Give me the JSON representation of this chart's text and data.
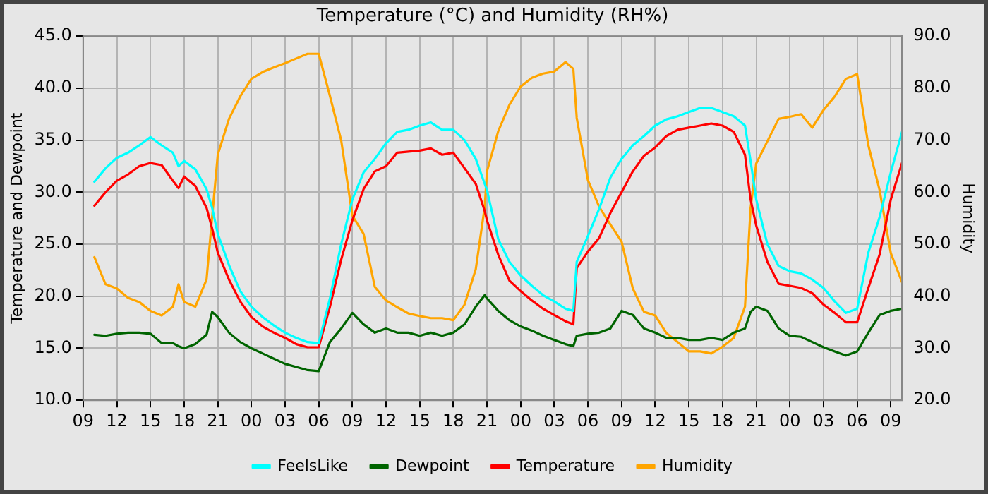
{
  "chart_data": {
    "type": "line",
    "title": "Temperature (°C) and Humidity (RH%)",
    "ylabel": "Temperature and Dewpoint",
    "y2label": "Humidity",
    "x": [
      10,
      11,
      12,
      13,
      14,
      15,
      16,
      17,
      17.5,
      18,
      19,
      20,
      20.5,
      21,
      22,
      23,
      24,
      25,
      26,
      27,
      28,
      29,
      30,
      31,
      32,
      33,
      34,
      35,
      36,
      37,
      38,
      39,
      40,
      41,
      42,
      43,
      44,
      44.8,
      45,
      46,
      47,
      48,
      49,
      50,
      51,
      52,
      52.7,
      53,
      54,
      55,
      56,
      57,
      58,
      59,
      60,
      61,
      62,
      63,
      64,
      65,
      66,
      67,
      68,
      68.5,
      69,
      70,
      71,
      72,
      73,
      74,
      75,
      76,
      77,
      78,
      79,
      80,
      81,
      82
    ],
    "series": [
      {
        "name": "FeelsLike",
        "color": "#00ffff",
        "values": [
          31,
          32.3,
          33.3,
          33.8,
          34.5,
          35.3,
          34.5,
          33.8,
          32.5,
          33,
          32.2,
          30.3,
          28.5,
          26,
          23,
          20.5,
          19,
          18,
          17.2,
          16.5,
          16,
          15.6,
          15.5,
          19.8,
          25,
          29.3,
          31.9,
          33.2,
          34.7,
          35.8,
          36,
          36.4,
          36.7,
          36,
          36,
          35,
          33.2,
          30.8,
          30.2,
          25.5,
          23.3,
          22,
          21,
          20.1,
          19.5,
          18.8,
          18.6,
          23.3,
          25.8,
          28.4,
          31.4,
          33.2,
          34.5,
          35.4,
          36.4,
          37,
          37.3,
          37.7,
          38.1,
          38.1,
          37.7,
          37.3,
          36.4,
          33,
          29.3,
          25,
          22.9,
          22.4,
          22.2,
          21.6,
          20.8,
          19.5,
          18.4,
          18.8,
          24.2,
          27.6,
          31.9,
          35.8
        ]
      },
      {
        "name": "Dewpoint",
        "color": "#006400",
        "values": [
          16.3,
          16.2,
          16.4,
          16.5,
          16.5,
          16.4,
          15.5,
          15.5,
          15.2,
          15,
          15.4,
          16.3,
          18.5,
          18,
          16.5,
          15.6,
          15,
          14.5,
          14,
          13.5,
          13.2,
          12.9,
          12.8,
          15.6,
          16.9,
          18.4,
          17.3,
          16.5,
          16.9,
          16.5,
          16.5,
          16.2,
          16.5,
          16.2,
          16.5,
          17.3,
          19,
          20.1,
          19.8,
          18.6,
          17.7,
          17.1,
          16.7,
          16.2,
          15.8,
          15.4,
          15.2,
          16.2,
          16.4,
          16.5,
          16.9,
          18.6,
          18.2,
          16.9,
          16.5,
          16,
          16,
          15.8,
          15.8,
          16,
          15.8,
          16.5,
          16.9,
          18.5,
          19,
          18.6,
          16.9,
          16.2,
          16.1,
          15.6,
          15.1,
          14.7,
          14.3,
          14.7,
          16.5,
          18.2,
          18.6,
          18.8
        ]
      },
      {
        "name": "Temperature",
        "color": "#ff0000",
        "values": [
          28.7,
          30,
          31.1,
          31.7,
          32.5,
          32.8,
          32.6,
          31.1,
          30.4,
          31.5,
          30.6,
          28.5,
          26.5,
          24.2,
          21.6,
          19.5,
          18,
          17.1,
          16.5,
          16,
          15.4,
          15.1,
          15.1,
          19,
          23.5,
          27.3,
          30.3,
          32,
          32.5,
          33.8,
          33.9,
          34,
          34.2,
          33.6,
          33.8,
          32.3,
          30.8,
          28.2,
          27.3,
          24,
          21.5,
          20.5,
          19.6,
          18.8,
          18.2,
          17.6,
          17.3,
          22.7,
          24.3,
          25.6,
          28,
          30,
          32,
          33.5,
          34.3,
          35.4,
          36,
          36.2,
          36.4,
          36.6,
          36.4,
          35.8,
          33.6,
          29.3,
          26.8,
          23.3,
          21.2,
          21,
          20.8,
          20.3,
          19.2,
          18.4,
          17.5,
          17.5,
          20.8,
          24,
          29.3,
          32.8
        ]
      },
      {
        "name": "Humidity",
        "color": "#ffa500",
        "axis": "y2",
        "values": [
          47.5,
          42.3,
          41.5,
          39.7,
          38.9,
          37.2,
          36.3,
          38,
          42.3,
          38.9,
          38,
          43.2,
          55.2,
          67.2,
          74.1,
          78.4,
          81.8,
          83.1,
          84,
          84.8,
          85.7,
          86.6,
          86.6,
          78.5,
          70,
          55.5,
          52,
          41.8,
          39.2,
          37.9,
          36.7,
          36.2,
          35.8,
          35.8,
          35.4,
          38.4,
          45.2,
          57.2,
          64,
          71.7,
          76.8,
          80.3,
          82,
          82.8,
          83.2,
          85,
          83.7,
          74.3,
          62.3,
          57.2,
          53.8,
          50.5,
          41.5,
          37,
          36.3,
          32.9,
          31.2,
          29.4,
          29.4,
          29,
          30.3,
          32,
          38,
          56.9,
          65.5,
          69.8,
          74.1,
          74.5,
          75,
          72.4,
          75.8,
          78.4,
          81.8,
          82.7,
          69,
          60.4,
          48.3,
          42.7
        ]
      }
    ],
    "xlim": [
      9,
      82
    ],
    "xticks": [
      {
        "value": 9,
        "label": "09"
      },
      {
        "value": 12,
        "label": "12"
      },
      {
        "value": 15,
        "label": "15"
      },
      {
        "value": 18,
        "label": "18"
      },
      {
        "value": 21,
        "label": "21"
      },
      {
        "value": 24,
        "label": "00"
      },
      {
        "value": 27,
        "label": "03"
      },
      {
        "value": 30,
        "label": "06"
      },
      {
        "value": 33,
        "label": "09"
      },
      {
        "value": 36,
        "label": "12"
      },
      {
        "value": 39,
        "label": "15"
      },
      {
        "value": 42,
        "label": "18"
      },
      {
        "value": 45,
        "label": "21"
      },
      {
        "value": 48,
        "label": "00"
      },
      {
        "value": 51,
        "label": "03"
      },
      {
        "value": 54,
        "label": "06"
      },
      {
        "value": 57,
        "label": "09"
      },
      {
        "value": 60,
        "label": "12"
      },
      {
        "value": 63,
        "label": "15"
      },
      {
        "value": 66,
        "label": "18"
      },
      {
        "value": 69,
        "label": "21"
      },
      {
        "value": 72,
        "label": "00"
      },
      {
        "value": 75,
        "label": "03"
      },
      {
        "value": 78,
        "label": "06"
      },
      {
        "value": 81,
        "label": "09"
      }
    ],
    "ylim": [
      10,
      45
    ],
    "yticks": [
      {
        "value": 10,
        "label": "10.0"
      },
      {
        "value": 15,
        "label": "15.0"
      },
      {
        "value": 20,
        "label": "20.0"
      },
      {
        "value": 25,
        "label": "25.0"
      },
      {
        "value": 30,
        "label": "30.0"
      },
      {
        "value": 35,
        "label": "35.0"
      },
      {
        "value": 40,
        "label": "40.0"
      },
      {
        "value": 45,
        "label": "45.0"
      }
    ],
    "y2lim": [
      20,
      90
    ],
    "y2ticks": [
      {
        "value": 20,
        "label": "20.0"
      },
      {
        "value": 30,
        "label": "30.0"
      },
      {
        "value": 40,
        "label": "40.0"
      },
      {
        "value": 50,
        "label": "50.0"
      },
      {
        "value": 60,
        "label": "60.0"
      },
      {
        "value": 70,
        "label": "70.0"
      },
      {
        "value": 80,
        "label": "80.0"
      },
      {
        "value": 90,
        "label": "90.0"
      }
    ],
    "grid": true,
    "legend": "bottom",
    "marker": "none",
    "line_style": "solid"
  }
}
